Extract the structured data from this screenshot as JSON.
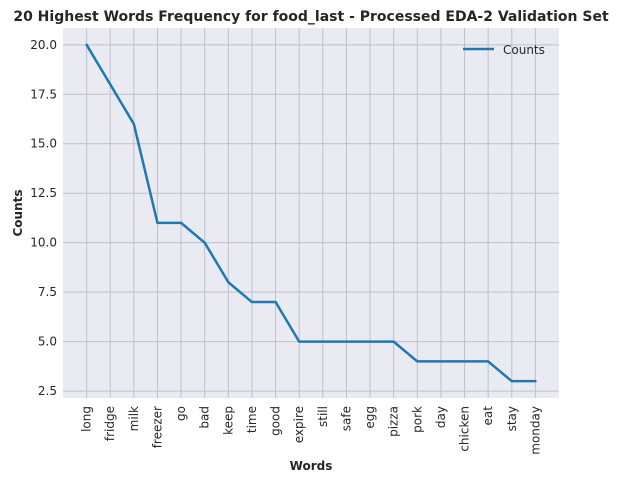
{
  "chart_data": {
    "type": "line",
    "title": "20 Highest Words Frequency for food_last - Processed EDA-2 Validation Set",
    "xlabel": "Words",
    "ylabel": "Counts",
    "categories": [
      "long",
      "fridge",
      "milk",
      "freezer",
      "go",
      "bad",
      "keep",
      "time",
      "good",
      "expire",
      "still",
      "safe",
      "egg",
      "pizza",
      "pork",
      "day",
      "chicken",
      "eat",
      "stay",
      "monday"
    ],
    "series": [
      {
        "name": "Counts",
        "values": [
          20,
          18,
          16,
          11,
          11,
          10,
          8,
          7,
          7,
          5,
          5,
          5,
          5,
          5,
          4,
          4,
          4,
          4,
          3,
          3
        ],
        "color": "#1f77b4"
      }
    ],
    "ylim": [
      2.15,
      20.85
    ],
    "yticks": [
      2.5,
      5.0,
      7.5,
      10.0,
      12.5,
      15.0,
      17.5,
      20.0
    ],
    "ytick_labels": [
      "2.5",
      "5.0",
      "7.5",
      "10.0",
      "12.5",
      "15.0",
      "17.5",
      "20.0"
    ],
    "grid": true,
    "legend_position": "top-right",
    "plot_background": "#eaeaf2",
    "grid_color": "#c0c0c8"
  }
}
